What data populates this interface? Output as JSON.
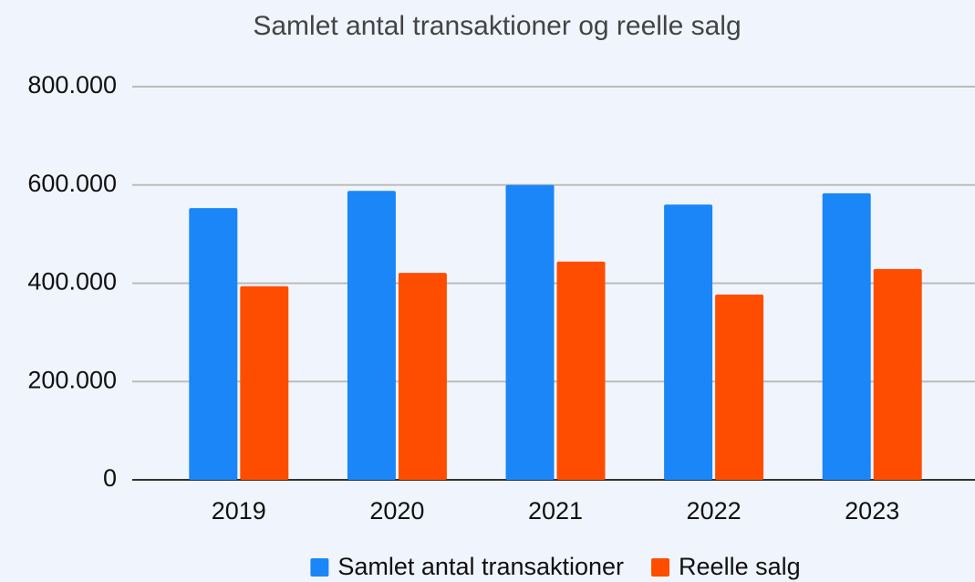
{
  "chart_data": {
    "type": "bar",
    "title": "Samlet antal transaktioner og reelle salg",
    "categories": [
      "2019",
      "2020",
      "2021",
      "2022",
      "2023"
    ],
    "series": [
      {
        "name": "Samlet antal transaktioner",
        "color": "#1a86f7",
        "values": [
          553000,
          588000,
          600000,
          560000,
          583000
        ]
      },
      {
        "name": "Reelle salg",
        "color": "#ff4d00",
        "values": [
          394000,
          421000,
          444000,
          377000,
          429000
        ]
      }
    ],
    "ylim": [
      0,
      800000
    ],
    "yticks": [
      0,
      {
        "value": 200000,
        "label": "200.000"
      },
      {
        "value": 400000,
        "label": "400.000"
      },
      {
        "value": 600000,
        "label": "600.000"
      },
      {
        "value": 800000,
        "label": "800.000"
      }
    ],
    "grid": true,
    "legend": "bottom"
  }
}
